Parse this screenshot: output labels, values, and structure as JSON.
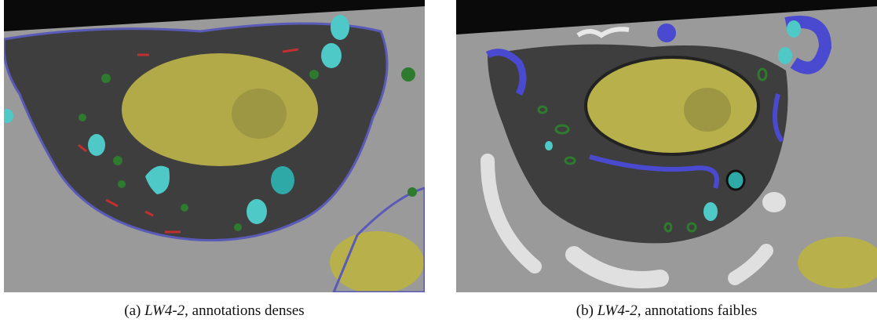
{
  "figures": [
    {
      "label": "(a)",
      "name": "LW4-2",
      "description": ", annotations denses"
    },
    {
      "label": "(b)",
      "name": "LW4-2",
      "description": ", annotations faibles"
    }
  ]
}
